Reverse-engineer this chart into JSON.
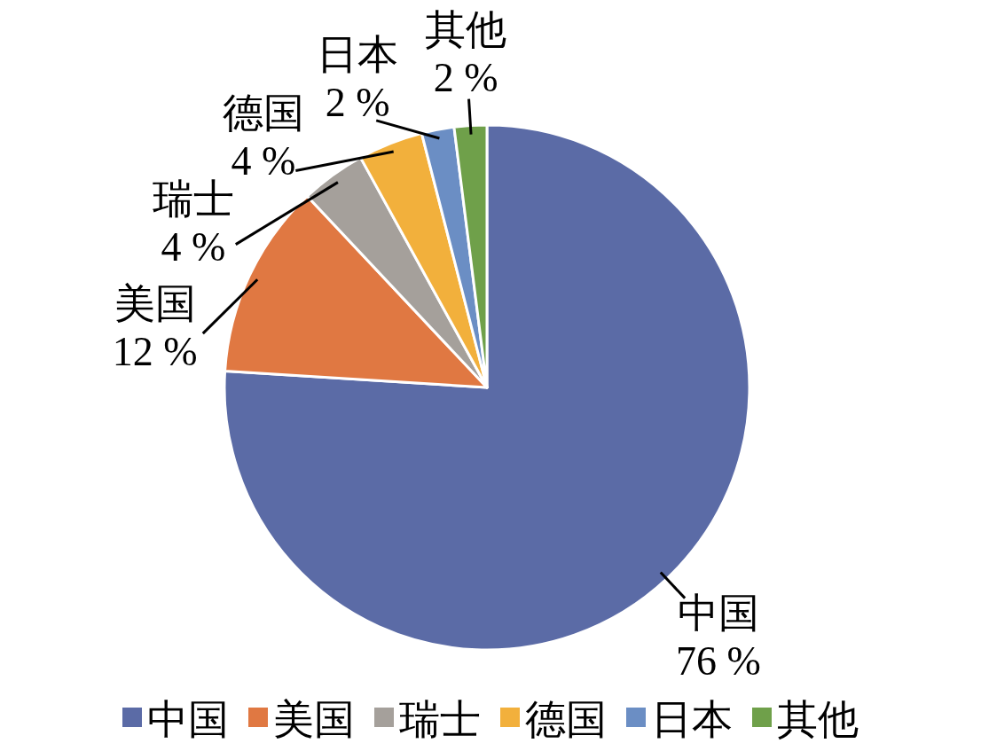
{
  "chart_data": {
    "type": "pie",
    "categories": [
      "中国",
      "美国",
      "瑞士",
      "德国",
      "日本",
      "其他"
    ],
    "values": [
      76,
      12,
      4,
      4,
      2,
      2
    ],
    "colors": [
      "#5b6ba6",
      "#e07842",
      "#a5a09b",
      "#f2b03c",
      "#6b8ec4",
      "#6fa04a"
    ],
    "value_labels": [
      "76 %",
      "12 %",
      "4 %",
      "4 %",
      "2 %",
      "2 %"
    ],
    "legend": "bottom"
  }
}
